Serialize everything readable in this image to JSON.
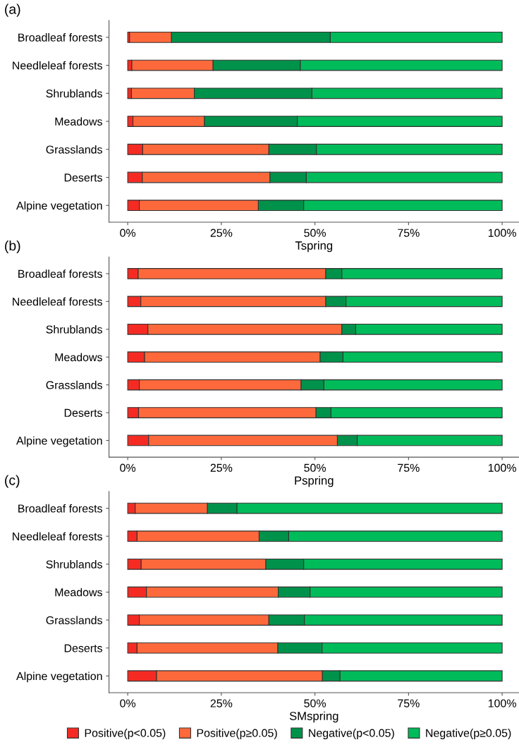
{
  "chart_data": [
    {
      "type": "bar",
      "orientation": "horizontal",
      "stacked": true,
      "title": "(a)",
      "xlabel": "Tspring",
      "categories": [
        "Broadleaf forests",
        "Needleleaf forests",
        "Shrublands",
        "Meadows",
        "Grasslands",
        "Deserts",
        "Alpine vegetation"
      ],
      "series": [
        {
          "color": "#f52b23",
          "values": [
            0.5,
            1.1,
            1.0,
            1.4,
            4.0,
            3.9,
            3.1
          ]
        },
        {
          "color": "#fe693c",
          "values": [
            11.2,
            21.7,
            16.8,
            19.1,
            33.7,
            34.1,
            31.8
          ]
        },
        {
          "color": "#00924a",
          "values": [
            42.4,
            23.3,
            31.4,
            24.8,
            12.7,
            9.7,
            12.1
          ]
        },
        {
          "color": "#00bb5a",
          "values": [
            45.9,
            53.9,
            50.8,
            54.7,
            49.6,
            52.3,
            53.0
          ]
        }
      ],
      "xlim": [
        -5,
        104.5
      ],
      "xticks": [
        {
          "value": 0,
          "label": "0%"
        },
        {
          "value": 25,
          "label": "25%"
        },
        {
          "value": 50,
          "label": "50%"
        },
        {
          "value": 75,
          "label": "75%"
        },
        {
          "value": 100,
          "label": "100%"
        }
      ],
      "grid": false
    },
    {
      "type": "bar",
      "orientation": "horizontal",
      "stacked": true,
      "title": "(b)",
      "xlabel": "Pspring",
      "categories": [
        "Broadleaf forests",
        "Needleleaf forests",
        "Shrublands",
        "Meadows",
        "Grasslands",
        "Deserts",
        "Alpine vegetation"
      ],
      "series": [
        {
          "color": "#f52b23",
          "values": [
            2.8,
            3.5,
            5.4,
            4.5,
            3.1,
            2.9,
            5.6
          ]
        },
        {
          "color": "#fe693c",
          "values": [
            50.1,
            49.4,
            51.8,
            46.9,
            43.2,
            47.4,
            50.4
          ]
        },
        {
          "color": "#00924a",
          "values": [
            4.3,
            5.4,
            3.7,
            6.1,
            6.1,
            4.0,
            5.3
          ]
        },
        {
          "color": "#00bb5a",
          "values": [
            42.8,
            41.7,
            39.1,
            42.5,
            47.6,
            45.7,
            38.7
          ]
        }
      ],
      "xlim": [
        -5,
        104.5
      ],
      "xticks": [
        {
          "value": 0,
          "label": "0%"
        },
        {
          "value": 25,
          "label": "25%"
        },
        {
          "value": 50,
          "label": "50%"
        },
        {
          "value": 75,
          "label": "75%"
        },
        {
          "value": 100,
          "label": "100%"
        }
      ],
      "grid": false
    },
    {
      "type": "bar",
      "orientation": "horizontal",
      "stacked": true,
      "title": "(c)",
      "xlabel": "SMspring",
      "legend": "bottom",
      "categories": [
        "Broadleaf forests",
        "Needleleaf forests",
        "Shrublands",
        "Meadows",
        "Grasslands",
        "Deserts",
        "Alpine vegetation"
      ],
      "series": [
        {
          "name": "Positive(p<0.05)",
          "color": "#f52b23",
          "values": [
            2.0,
            2.5,
            3.6,
            5.0,
            3.1,
            2.5,
            7.7
          ]
        },
        {
          "name": "Positive(p≥0.05)",
          "color": "#fe693c",
          "values": [
            19.3,
            32.6,
            33.3,
            35.2,
            34.6,
            37.6,
            44.3
          ]
        },
        {
          "name": "Negative(p<0.05)",
          "color": "#00924a",
          "values": [
            7.9,
            7.9,
            10.1,
            8.5,
            9.5,
            11.8,
            4.7
          ]
        },
        {
          "name": "Negative(p≥0.05)",
          "color": "#00bb5a",
          "values": [
            70.8,
            57.0,
            53.0,
            51.3,
            52.8,
            48.1,
            43.3
          ]
        }
      ],
      "xlim": [
        -5,
        104.5
      ],
      "xticks": [
        {
          "value": 0,
          "label": "0%"
        },
        {
          "value": 25,
          "label": "25%"
        },
        {
          "value": 50,
          "label": "50%"
        },
        {
          "value": 75,
          "label": "75%"
        },
        {
          "value": 100,
          "label": "100%"
        }
      ],
      "grid": false
    }
  ]
}
